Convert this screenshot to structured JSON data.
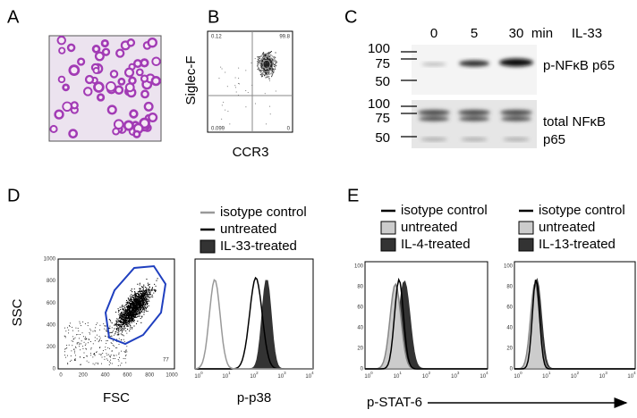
{
  "panels": {
    "a": {
      "label": "A"
    },
    "b": {
      "label": "B",
      "y_label": "Siglec-F",
      "x_label": "CCR3",
      "quadrants": [
        "0.12",
        "99.8",
        "0.099",
        "0"
      ]
    },
    "c": {
      "label": "C",
      "lanes": [
        "0",
        "5",
        "30"
      ],
      "unit": "min",
      "treatment": "IL-33",
      "blots": [
        {
          "markers": [
            "100",
            "75",
            "50"
          ],
          "labels": [
            "p-NFκB p65"
          ]
        },
        {
          "markers": [
            "100",
            "75",
            "50"
          ],
          "labels": [
            "total NFκB",
            "p65"
          ]
        }
      ]
    },
    "d": {
      "label": "D",
      "scatter": {
        "y_label": "SSC",
        "x_label": "FSC",
        "yticks": [
          "1000",
          "800",
          "600",
          "400",
          "200",
          "0"
        ],
        "xticks": [
          "0",
          "200",
          "400",
          "600",
          "800",
          "1000"
        ],
        "gate": "77"
      },
      "legend": [
        "isotype control",
        "untreated",
        "IL-33-treated"
      ],
      "histogram": {
        "x_label": "p-p38",
        "xticks": [
          {
            "base": "10",
            "exp": "0"
          },
          {
            "base": "10",
            "exp": "1"
          },
          {
            "base": "10",
            "exp": "2"
          },
          {
            "base": "10",
            "exp": "3"
          },
          {
            "base": "10",
            "exp": "4"
          }
        ]
      }
    },
    "e": {
      "label": "E",
      "x_label": "p-STAT-6",
      "plots": [
        {
          "legend": [
            "isotype control",
            "untreated",
            "IL-4-treated"
          ],
          "yticks": [
            "100",
            "80",
            "60",
            "40",
            "20",
            "0"
          ]
        },
        {
          "legend": [
            "isotype control",
            "untreated",
            "IL-13-treated"
          ],
          "yticks": [
            "100",
            "80",
            "60",
            "40",
            "20",
            "0"
          ]
        }
      ],
      "xticks": [
        {
          "base": "10",
          "exp": "0"
        },
        {
          "base": "10",
          "exp": "1"
        },
        {
          "base": "10",
          "exp": "2"
        },
        {
          "base": "10",
          "exp": "3"
        },
        {
          "base": "10",
          "exp": "4"
        }
      ]
    }
  }
}
